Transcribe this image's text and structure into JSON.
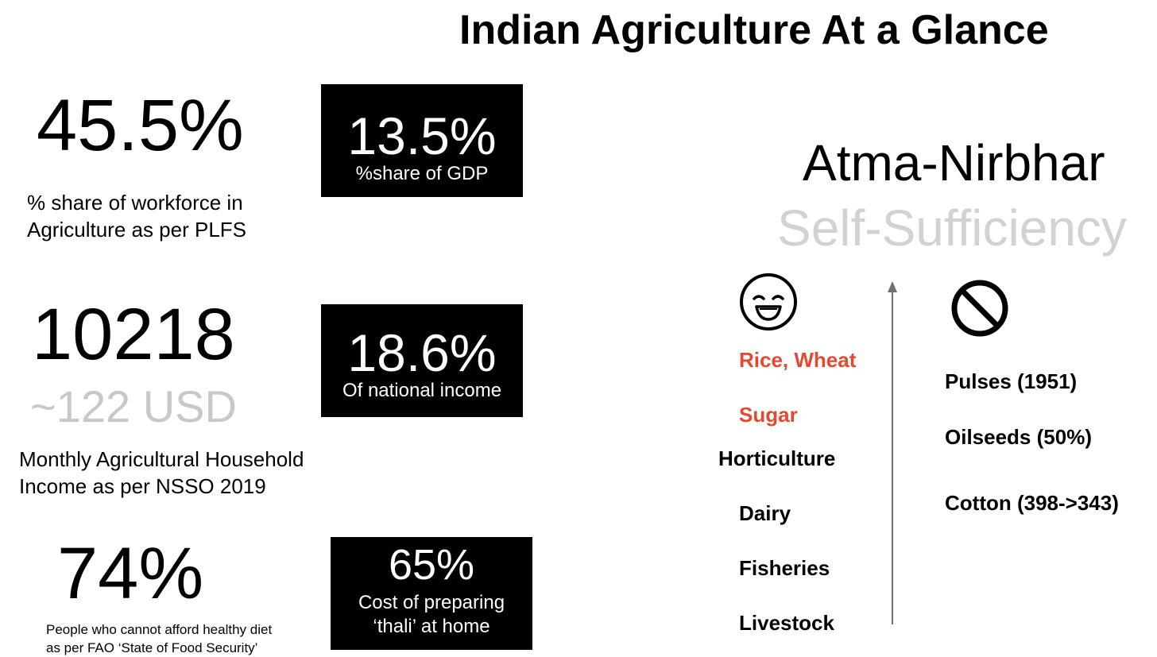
{
  "title": "Indian Agriculture At a Glance",
  "stats": {
    "workforce": {
      "value": "45.5%",
      "caption_line1": "% share of workforce in",
      "caption_line2": "Agriculture as per PLFS"
    },
    "gdp_box": {
      "value": "13.5%",
      "label": "%share of GDP"
    },
    "income": {
      "value": "10218",
      "usd": "~122 USD",
      "caption_line1": "Monthly Agricultural Household",
      "caption_line2": "Income as per NSSO 2019"
    },
    "national_income_box": {
      "value": "18.6%",
      "label": "Of national income"
    },
    "diet": {
      "value": "74%",
      "caption_line1": "People who cannot afford healthy diet",
      "caption_line2": "as per FAO ‘State of Food Security’"
    },
    "thali_box": {
      "value": "65%",
      "label_line1": "Cost of preparing",
      "label_line2": "‘thali’ at home"
    }
  },
  "self_sufficiency": {
    "heading": "Atma-Nirbhar",
    "subheading": "Self-Sufficiency",
    "sufficient": [
      "Rice, Wheat",
      "Sugar",
      "Horticulture",
      "Dairy",
      "Fisheries",
      "Livestock"
    ],
    "not_sufficient": [
      "Pulses (1951)",
      "Oilseeds (50%)",
      "Cotton (398->343)"
    ]
  },
  "colors": {
    "highlight": "#e34a2f",
    "faded": "#c8c8c8",
    "box": "#000000"
  },
  "icons": {
    "happy": "laughing-face-icon",
    "no": "prohibited-icon"
  }
}
